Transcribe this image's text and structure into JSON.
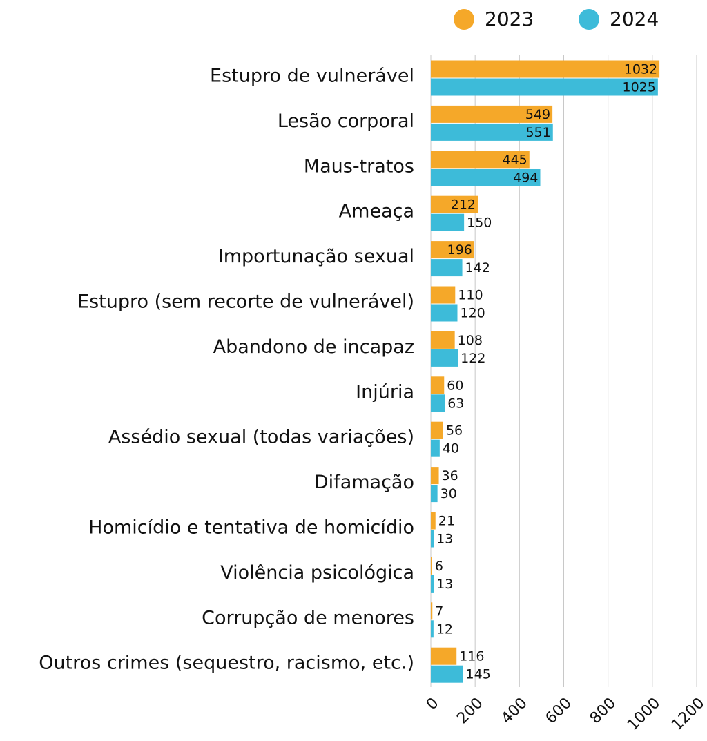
{
  "chart_data": {
    "type": "bar",
    "orientation": "horizontal",
    "categories": [
      "Estupro de vulnerável",
      "Lesão corporal",
      "Maus-tratos",
      "Ameaça",
      "Importunação sexual",
      "Estupro (sem recorte de vulnerável)",
      "Abandono de incapaz",
      "Injúria",
      "Assédio sexual (todas variações)",
      "Difamação",
      "Homicídio e tentativa de homicídio",
      "Violência psicológica",
      "Corrupção de menores",
      "Outros crimes (sequestro, racismo, etc.)"
    ],
    "series": [
      {
        "name": "2023",
        "color": "#f5a829",
        "values": [
          1032,
          549,
          445,
          212,
          196,
          110,
          108,
          60,
          56,
          36,
          21,
          6,
          7,
          116
        ]
      },
      {
        "name": "2024",
        "color": "#3dbbd9",
        "values": [
          1025,
          551,
          494,
          150,
          142,
          120,
          122,
          63,
          40,
          30,
          13,
          13,
          12,
          145
        ]
      }
    ],
    "xlim": [
      0,
      1200
    ],
    "xticks": [
      0,
      200,
      400,
      600,
      800,
      1000,
      1200
    ],
    "grid": true,
    "legend": "top-right"
  }
}
